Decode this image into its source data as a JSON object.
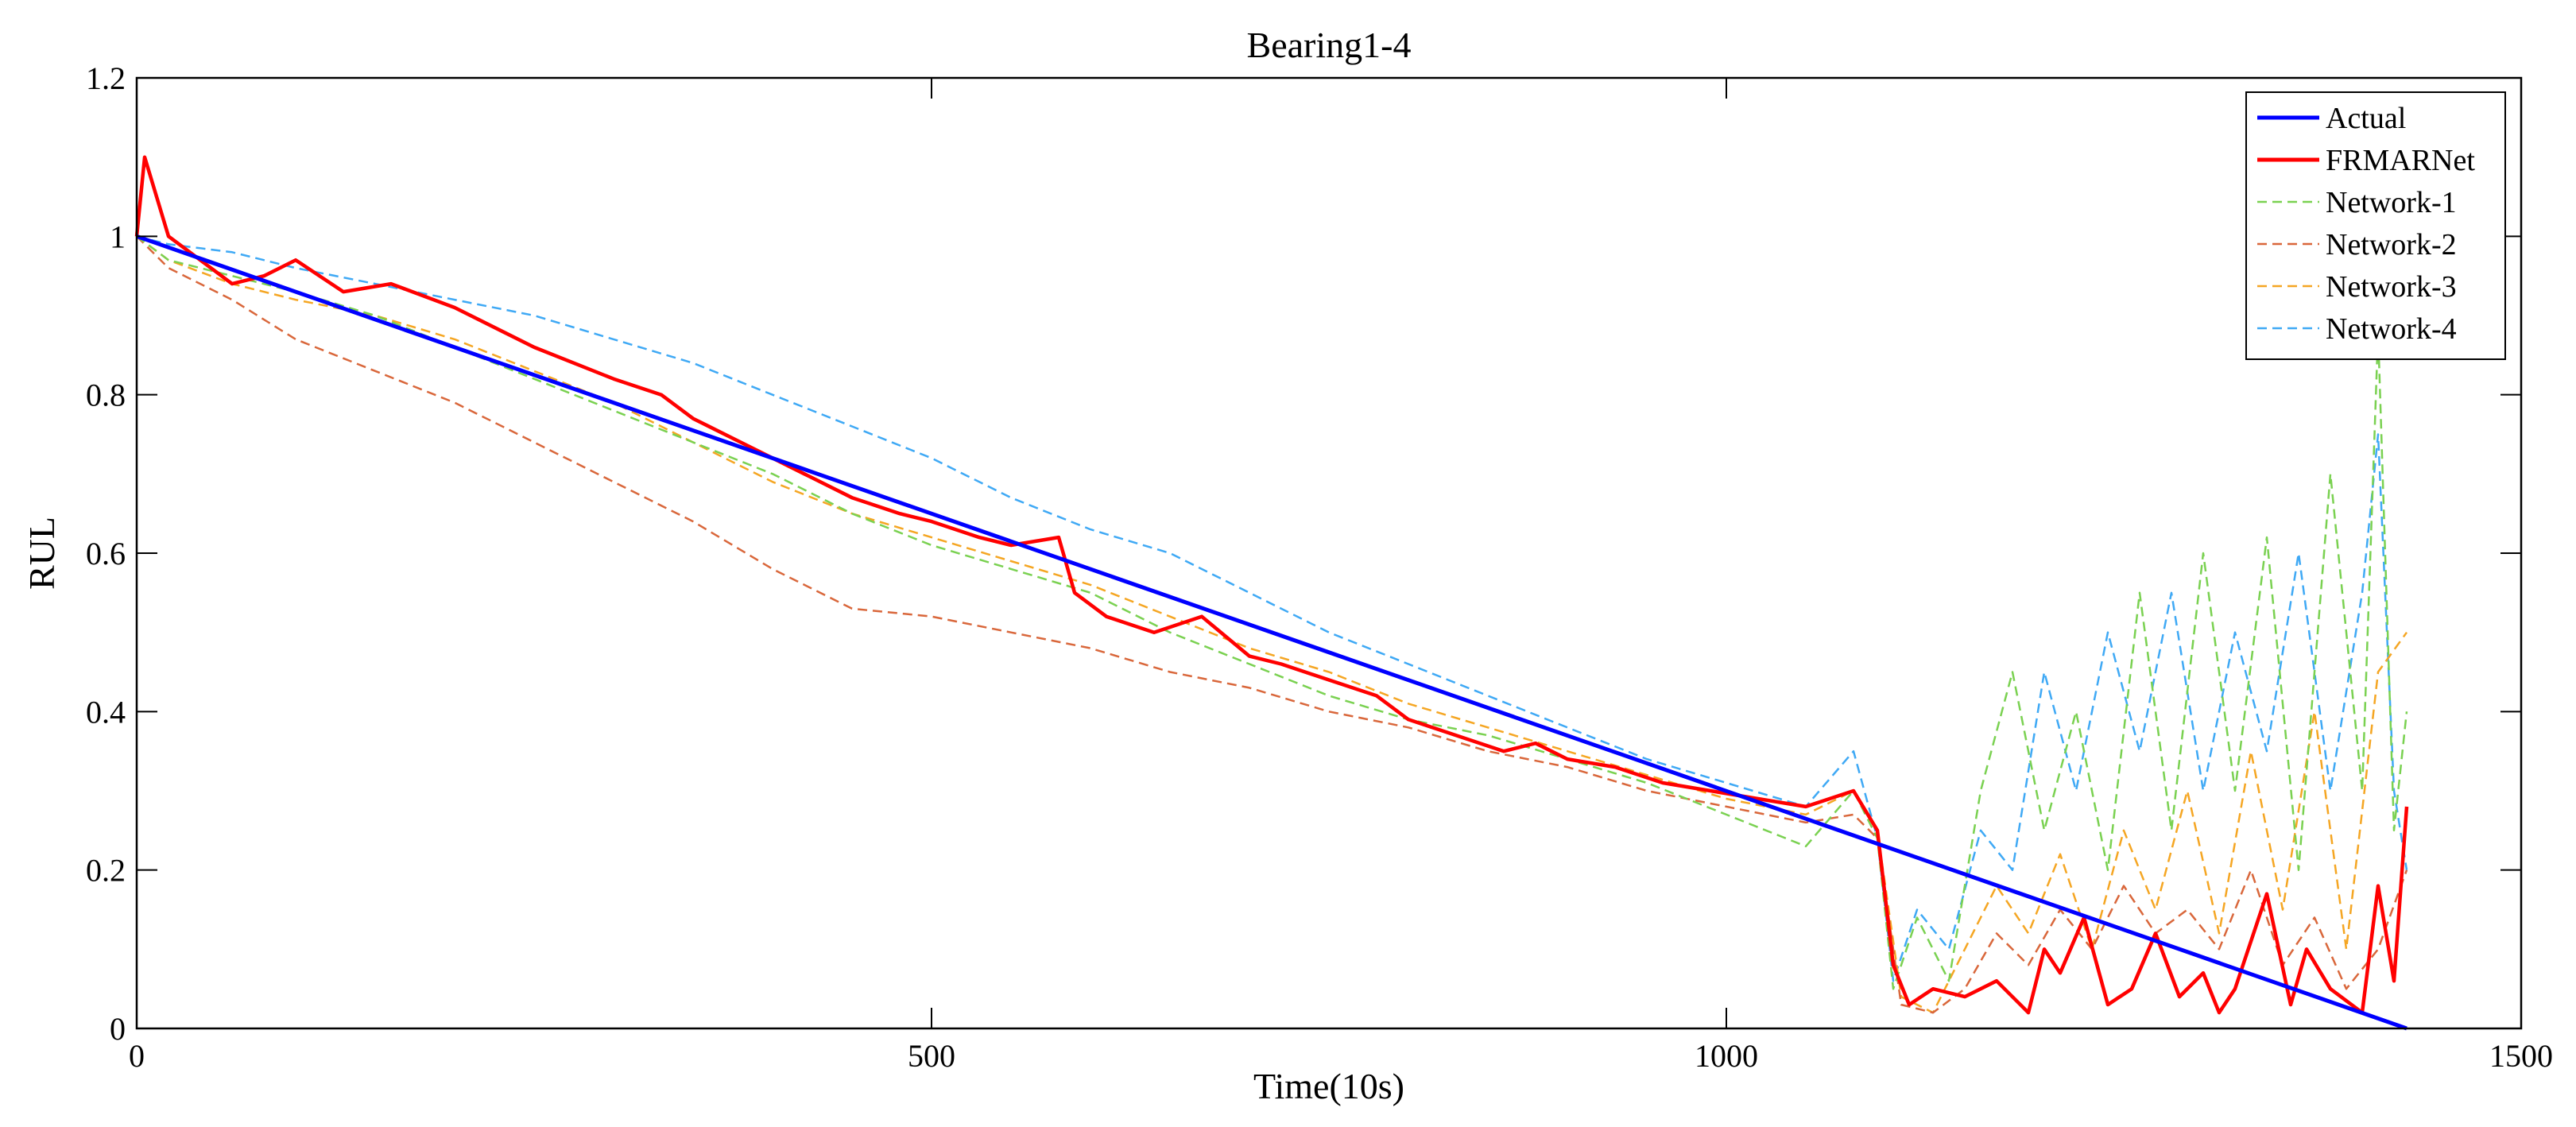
{
  "chart_data": {
    "type": "line",
    "title": "Bearing1-4",
    "xlabel": "Time(10s)",
    "ylabel": "RUL",
    "xlim": [
      0,
      1500
    ],
    "ylim": [
      0,
      1.2
    ],
    "xticks": [
      0,
      500,
      1000,
      1500
    ],
    "xtick_labels": [
      "0",
      "500",
      "1000",
      "1500"
    ],
    "yticks": [
      0,
      0.2,
      0.4,
      0.6,
      0.8,
      1.0,
      1.2
    ],
    "ytick_labels": [
      "0",
      "0.2",
      "0.4",
      "0.6",
      "0.8",
      "1",
      "1.2"
    ],
    "grid": false,
    "legend_position": "top-right",
    "series": [
      {
        "name": "Actual",
        "color": "#0000ff",
        "style": "solid",
        "x": [
          0,
          1428
        ],
        "y": [
          1.0,
          0.0
        ]
      },
      {
        "name": "FRMARNet",
        "color": "#ff0000",
        "style": "solid",
        "x": [
          0,
          5,
          20,
          40,
          60,
          80,
          100,
          130,
          160,
          200,
          250,
          300,
          330,
          350,
          380,
          420,
          450,
          480,
          500,
          530,
          550,
          580,
          590,
          610,
          640,
          670,
          700,
          720,
          750,
          780,
          800,
          830,
          860,
          880,
          900,
          930,
          960,
          990,
          1020,
          1050,
          1080,
          1095,
          1105,
          1115,
          1130,
          1150,
          1170,
          1190,
          1200,
          1210,
          1225,
          1240,
          1255,
          1270,
          1285,
          1300,
          1310,
          1320,
          1340,
          1355,
          1365,
          1380,
          1400,
          1410,
          1420,
          1428
        ],
        "y": [
          1.0,
          1.1,
          1.0,
          0.97,
          0.94,
          0.95,
          0.97,
          0.93,
          0.94,
          0.91,
          0.86,
          0.82,
          0.8,
          0.77,
          0.74,
          0.7,
          0.67,
          0.65,
          0.64,
          0.62,
          0.61,
          0.62,
          0.55,
          0.52,
          0.5,
          0.52,
          0.47,
          0.46,
          0.44,
          0.42,
          0.39,
          0.37,
          0.35,
          0.36,
          0.34,
          0.33,
          0.31,
          0.3,
          0.29,
          0.28,
          0.3,
          0.25,
          0.08,
          0.03,
          0.05,
          0.04,
          0.06,
          0.02,
          0.1,
          0.07,
          0.14,
          0.03,
          0.05,
          0.12,
          0.04,
          0.07,
          0.02,
          0.05,
          0.17,
          0.03,
          0.1,
          0.05,
          0.02,
          0.18,
          0.06,
          0.28
        ]
      },
      {
        "name": "Network-1",
        "color": "#7ad151",
        "style": "dashed",
        "x": [
          0,
          20,
          60,
          100,
          150,
          200,
          250,
          300,
          350,
          400,
          450,
          500,
          550,
          600,
          650,
          700,
          750,
          800,
          850,
          900,
          950,
          1000,
          1050,
          1080,
          1095,
          1105,
          1120,
          1140,
          1160,
          1180,
          1200,
          1220,
          1240,
          1260,
          1280,
          1300,
          1320,
          1340,
          1360,
          1380,
          1400,
          1410,
          1420,
          1428
        ],
        "y": [
          1.0,
          0.97,
          0.95,
          0.93,
          0.9,
          0.86,
          0.82,
          0.78,
          0.74,
          0.7,
          0.65,
          0.61,
          0.58,
          0.55,
          0.5,
          0.46,
          0.42,
          0.39,
          0.37,
          0.34,
          0.31,
          0.27,
          0.23,
          0.3,
          0.24,
          0.05,
          0.14,
          0.06,
          0.3,
          0.45,
          0.25,
          0.4,
          0.2,
          0.55,
          0.25,
          0.6,
          0.3,
          0.62,
          0.2,
          0.7,
          0.3,
          0.88,
          0.25,
          0.4
        ]
      },
      {
        "name": "Network-2",
        "color": "#d9673b",
        "style": "dashed",
        "x": [
          0,
          20,
          60,
          100,
          150,
          200,
          250,
          300,
          350,
          400,
          450,
          500,
          550,
          600,
          650,
          700,
          750,
          800,
          850,
          900,
          950,
          1000,
          1050,
          1080,
          1095,
          1110,
          1130,
          1150,
          1170,
          1190,
          1210,
          1230,
          1250,
          1270,
          1290,
          1310,
          1330,
          1350,
          1370,
          1390,
          1410,
          1428
        ],
        "y": [
          1.0,
          0.96,
          0.92,
          0.87,
          0.83,
          0.79,
          0.74,
          0.69,
          0.64,
          0.58,
          0.53,
          0.52,
          0.5,
          0.48,
          0.45,
          0.43,
          0.4,
          0.38,
          0.35,
          0.33,
          0.3,
          0.28,
          0.26,
          0.27,
          0.24,
          0.03,
          0.02,
          0.05,
          0.12,
          0.08,
          0.15,
          0.1,
          0.18,
          0.12,
          0.15,
          0.1,
          0.2,
          0.08,
          0.14,
          0.05,
          0.1,
          0.2
        ]
      },
      {
        "name": "Network-3",
        "color": "#f5a623",
        "style": "dashed",
        "x": [
          0,
          20,
          60,
          100,
          150,
          200,
          250,
          300,
          350,
          400,
          450,
          500,
          550,
          600,
          650,
          700,
          750,
          800,
          850,
          900,
          950,
          1000,
          1050,
          1080,
          1095,
          1110,
          1130,
          1150,
          1170,
          1190,
          1210,
          1230,
          1250,
          1270,
          1290,
          1310,
          1330,
          1350,
          1370,
          1390,
          1410,
          1428
        ],
        "y": [
          1.0,
          0.97,
          0.94,
          0.92,
          0.9,
          0.87,
          0.83,
          0.79,
          0.74,
          0.69,
          0.65,
          0.62,
          0.59,
          0.56,
          0.52,
          0.48,
          0.45,
          0.41,
          0.38,
          0.35,
          0.32,
          0.29,
          0.27,
          0.3,
          0.25,
          0.04,
          0.02,
          0.1,
          0.18,
          0.12,
          0.22,
          0.1,
          0.25,
          0.15,
          0.3,
          0.12,
          0.35,
          0.15,
          0.4,
          0.1,
          0.45,
          0.5
        ]
      },
      {
        "name": "Network-4",
        "color": "#3fa9f5",
        "style": "dashed",
        "x": [
          0,
          20,
          60,
          100,
          150,
          200,
          250,
          300,
          350,
          400,
          450,
          500,
          550,
          600,
          650,
          700,
          750,
          800,
          850,
          900,
          950,
          1000,
          1050,
          1080,
          1095,
          1105,
          1120,
          1140,
          1160,
          1180,
          1200,
          1220,
          1240,
          1260,
          1280,
          1300,
          1320,
          1340,
          1360,
          1380,
          1400,
          1410,
          1420,
          1428
        ],
        "y": [
          1.0,
          0.99,
          0.98,
          0.96,
          0.94,
          0.92,
          0.9,
          0.87,
          0.84,
          0.8,
          0.76,
          0.72,
          0.67,
          0.63,
          0.6,
          0.55,
          0.5,
          0.46,
          0.42,
          0.38,
          0.34,
          0.31,
          0.28,
          0.35,
          0.24,
          0.06,
          0.15,
          0.1,
          0.25,
          0.2,
          0.45,
          0.3,
          0.5,
          0.35,
          0.55,
          0.3,
          0.5,
          0.35,
          0.6,
          0.3,
          0.55,
          0.75,
          0.3,
          0.2
        ]
      }
    ]
  }
}
